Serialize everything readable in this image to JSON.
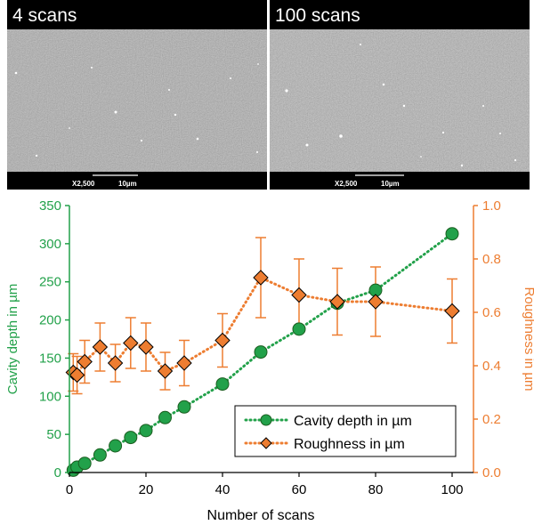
{
  "panels": [
    {
      "title": "4 scans",
      "magnification": "X2,500",
      "scale_label": "10µm"
    },
    {
      "title": "100 scans",
      "magnification": "X2,500",
      "scale_label": "10µm"
    }
  ],
  "chart_data": {
    "type": "scatter",
    "xlabel": "Number of scans",
    "ylabel": "Cavity depth in µm",
    "y2label": "Roughness in µm",
    "xlim": [
      0,
      100
    ],
    "ylim": [
      0,
      350
    ],
    "y2lim": [
      0,
      1.0
    ],
    "xticks": [
      "0",
      "20",
      "40",
      "60",
      "80",
      "100"
    ],
    "yticks": [
      "0",
      "50",
      "100",
      "150",
      "200",
      "250",
      "300",
      "350"
    ],
    "y2ticks": [
      "0.0",
      "0.2",
      "0.4",
      "0.6",
      "0.8",
      "1.0"
    ],
    "legend_position": "bottom-right",
    "colors": {
      "depth": "#22a14a",
      "roughness": "#ed7d31",
      "depth_axis": "#22a14a",
      "roughness_axis": "#ed7d31"
    },
    "series": [
      {
        "name": "Cavity depth in µm",
        "axis": "left",
        "marker": "circle",
        "line": "dotted",
        "x": [
          1,
          2,
          4,
          8,
          12,
          16,
          20,
          25,
          30,
          40,
          50,
          60,
          70,
          80,
          100
        ],
        "y": [
          3,
          7,
          12,
          23,
          35,
          46,
          55,
          72,
          86,
          116,
          158,
          188,
          222,
          239,
          313
        ]
      },
      {
        "name": "Roughness in µm",
        "axis": "right",
        "marker": "diamond",
        "line": "dotted",
        "x": [
          1,
          2,
          4,
          8,
          12,
          16,
          20,
          25,
          30,
          40,
          50,
          60,
          70,
          80,
          100
        ],
        "y": [
          0.375,
          0.365,
          0.415,
          0.47,
          0.41,
          0.485,
          0.47,
          0.38,
          0.41,
          0.495,
          0.73,
          0.665,
          0.64,
          0.64,
          0.605
        ],
        "err": [
          0.07,
          0.07,
          0.08,
          0.09,
          0.07,
          0.095,
          0.09,
          0.07,
          0.085,
          0.1,
          0.15,
          0.135,
          0.125,
          0.13,
          0.12
        ]
      }
    ]
  }
}
